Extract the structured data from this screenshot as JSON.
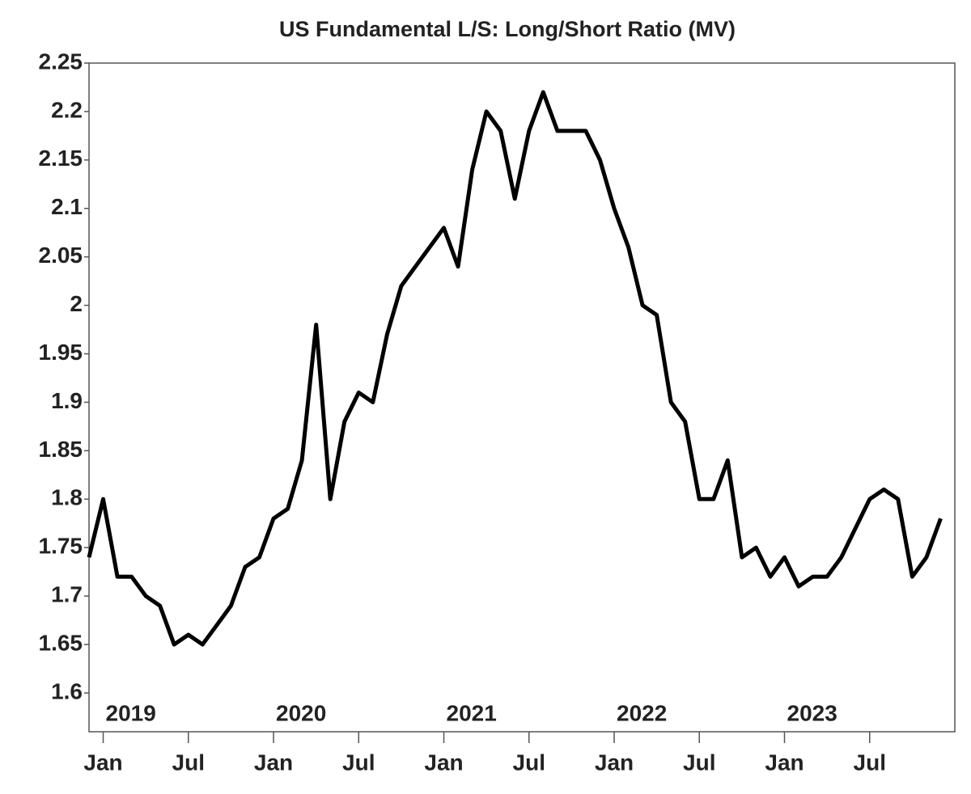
{
  "chart_data": {
    "type": "line",
    "title": "US Fundamental L/S: Long/Short Ratio (MV)",
    "x": [
      "2018-12",
      "2019-01",
      "2019-02",
      "2019-03",
      "2019-04",
      "2019-05",
      "2019-06",
      "2019-07",
      "2019-08",
      "2019-09",
      "2019-10",
      "2019-11",
      "2019-12",
      "2020-01",
      "2020-02",
      "2020-03",
      "2020-04",
      "2020-05",
      "2020-06",
      "2020-07",
      "2020-08",
      "2020-09",
      "2020-10",
      "2020-11",
      "2020-12",
      "2021-01",
      "2021-02",
      "2021-03",
      "2021-04",
      "2021-05",
      "2021-06",
      "2021-07",
      "2021-08",
      "2021-09",
      "2021-10",
      "2021-11",
      "2021-12",
      "2022-01",
      "2022-02",
      "2022-03",
      "2022-04",
      "2022-05",
      "2022-06",
      "2022-07",
      "2022-08",
      "2022-09",
      "2022-10",
      "2022-11",
      "2022-12",
      "2023-01",
      "2023-02",
      "2023-03",
      "2023-04",
      "2023-05",
      "2023-06",
      "2023-07",
      "2023-08",
      "2023-09",
      "2023-10",
      "2023-11",
      "2023-12"
    ],
    "series": [
      {
        "name": "Long/Short Ratio",
        "color": "#000000",
        "values": [
          1.74,
          1.8,
          1.72,
          1.72,
          1.7,
          1.69,
          1.65,
          1.66,
          1.65,
          1.67,
          1.69,
          1.73,
          1.74,
          1.78,
          1.79,
          1.84,
          1.98,
          1.8,
          1.88,
          1.91,
          1.9,
          1.97,
          2.02,
          2.04,
          2.06,
          2.08,
          2.04,
          2.14,
          2.2,
          2.18,
          2.11,
          2.18,
          2.22,
          2.18,
          2.18,
          2.18,
          2.15,
          2.1,
          2.06,
          2.0,
          1.99,
          1.9,
          1.88,
          1.8,
          1.8,
          1.84,
          1.74,
          1.75,
          1.72,
          1.74,
          1.71,
          1.72,
          1.72,
          1.74,
          1.77,
          1.8,
          1.81,
          1.8,
          1.72,
          1.74,
          1.78
        ]
      }
    ],
    "xlim": [
      "2018-12",
      "2024-01"
    ],
    "xticks": [
      {
        "value": "2019-01",
        "label": "Jan"
      },
      {
        "value": "2019-07",
        "label": "Jul"
      },
      {
        "value": "2020-01",
        "label": "Jan"
      },
      {
        "value": "2020-07",
        "label": "Jul"
      },
      {
        "value": "2021-01",
        "label": "Jan"
      },
      {
        "value": "2021-07",
        "label": "Jul"
      },
      {
        "value": "2022-01",
        "label": "Jan"
      },
      {
        "value": "2022-07",
        "label": "Jul"
      },
      {
        "value": "2023-01",
        "label": "Jan"
      },
      {
        "value": "2023-07",
        "label": "Jul"
      }
    ],
    "year_labels": [
      {
        "value": "2019-01",
        "label": "2019"
      },
      {
        "value": "2020-01",
        "label": "2020"
      },
      {
        "value": "2021-01",
        "label": "2021"
      },
      {
        "value": "2022-01",
        "label": "2022"
      },
      {
        "value": "2023-01",
        "label": "2023"
      }
    ],
    "ylim": [
      1.56,
      2.25
    ],
    "yticks": [
      1.6,
      1.65,
      1.7,
      1.75,
      1.8,
      1.85,
      1.9,
      1.95,
      2,
      2.05,
      2.1,
      2.15,
      2.2,
      2.25
    ],
    "grid": false
  }
}
